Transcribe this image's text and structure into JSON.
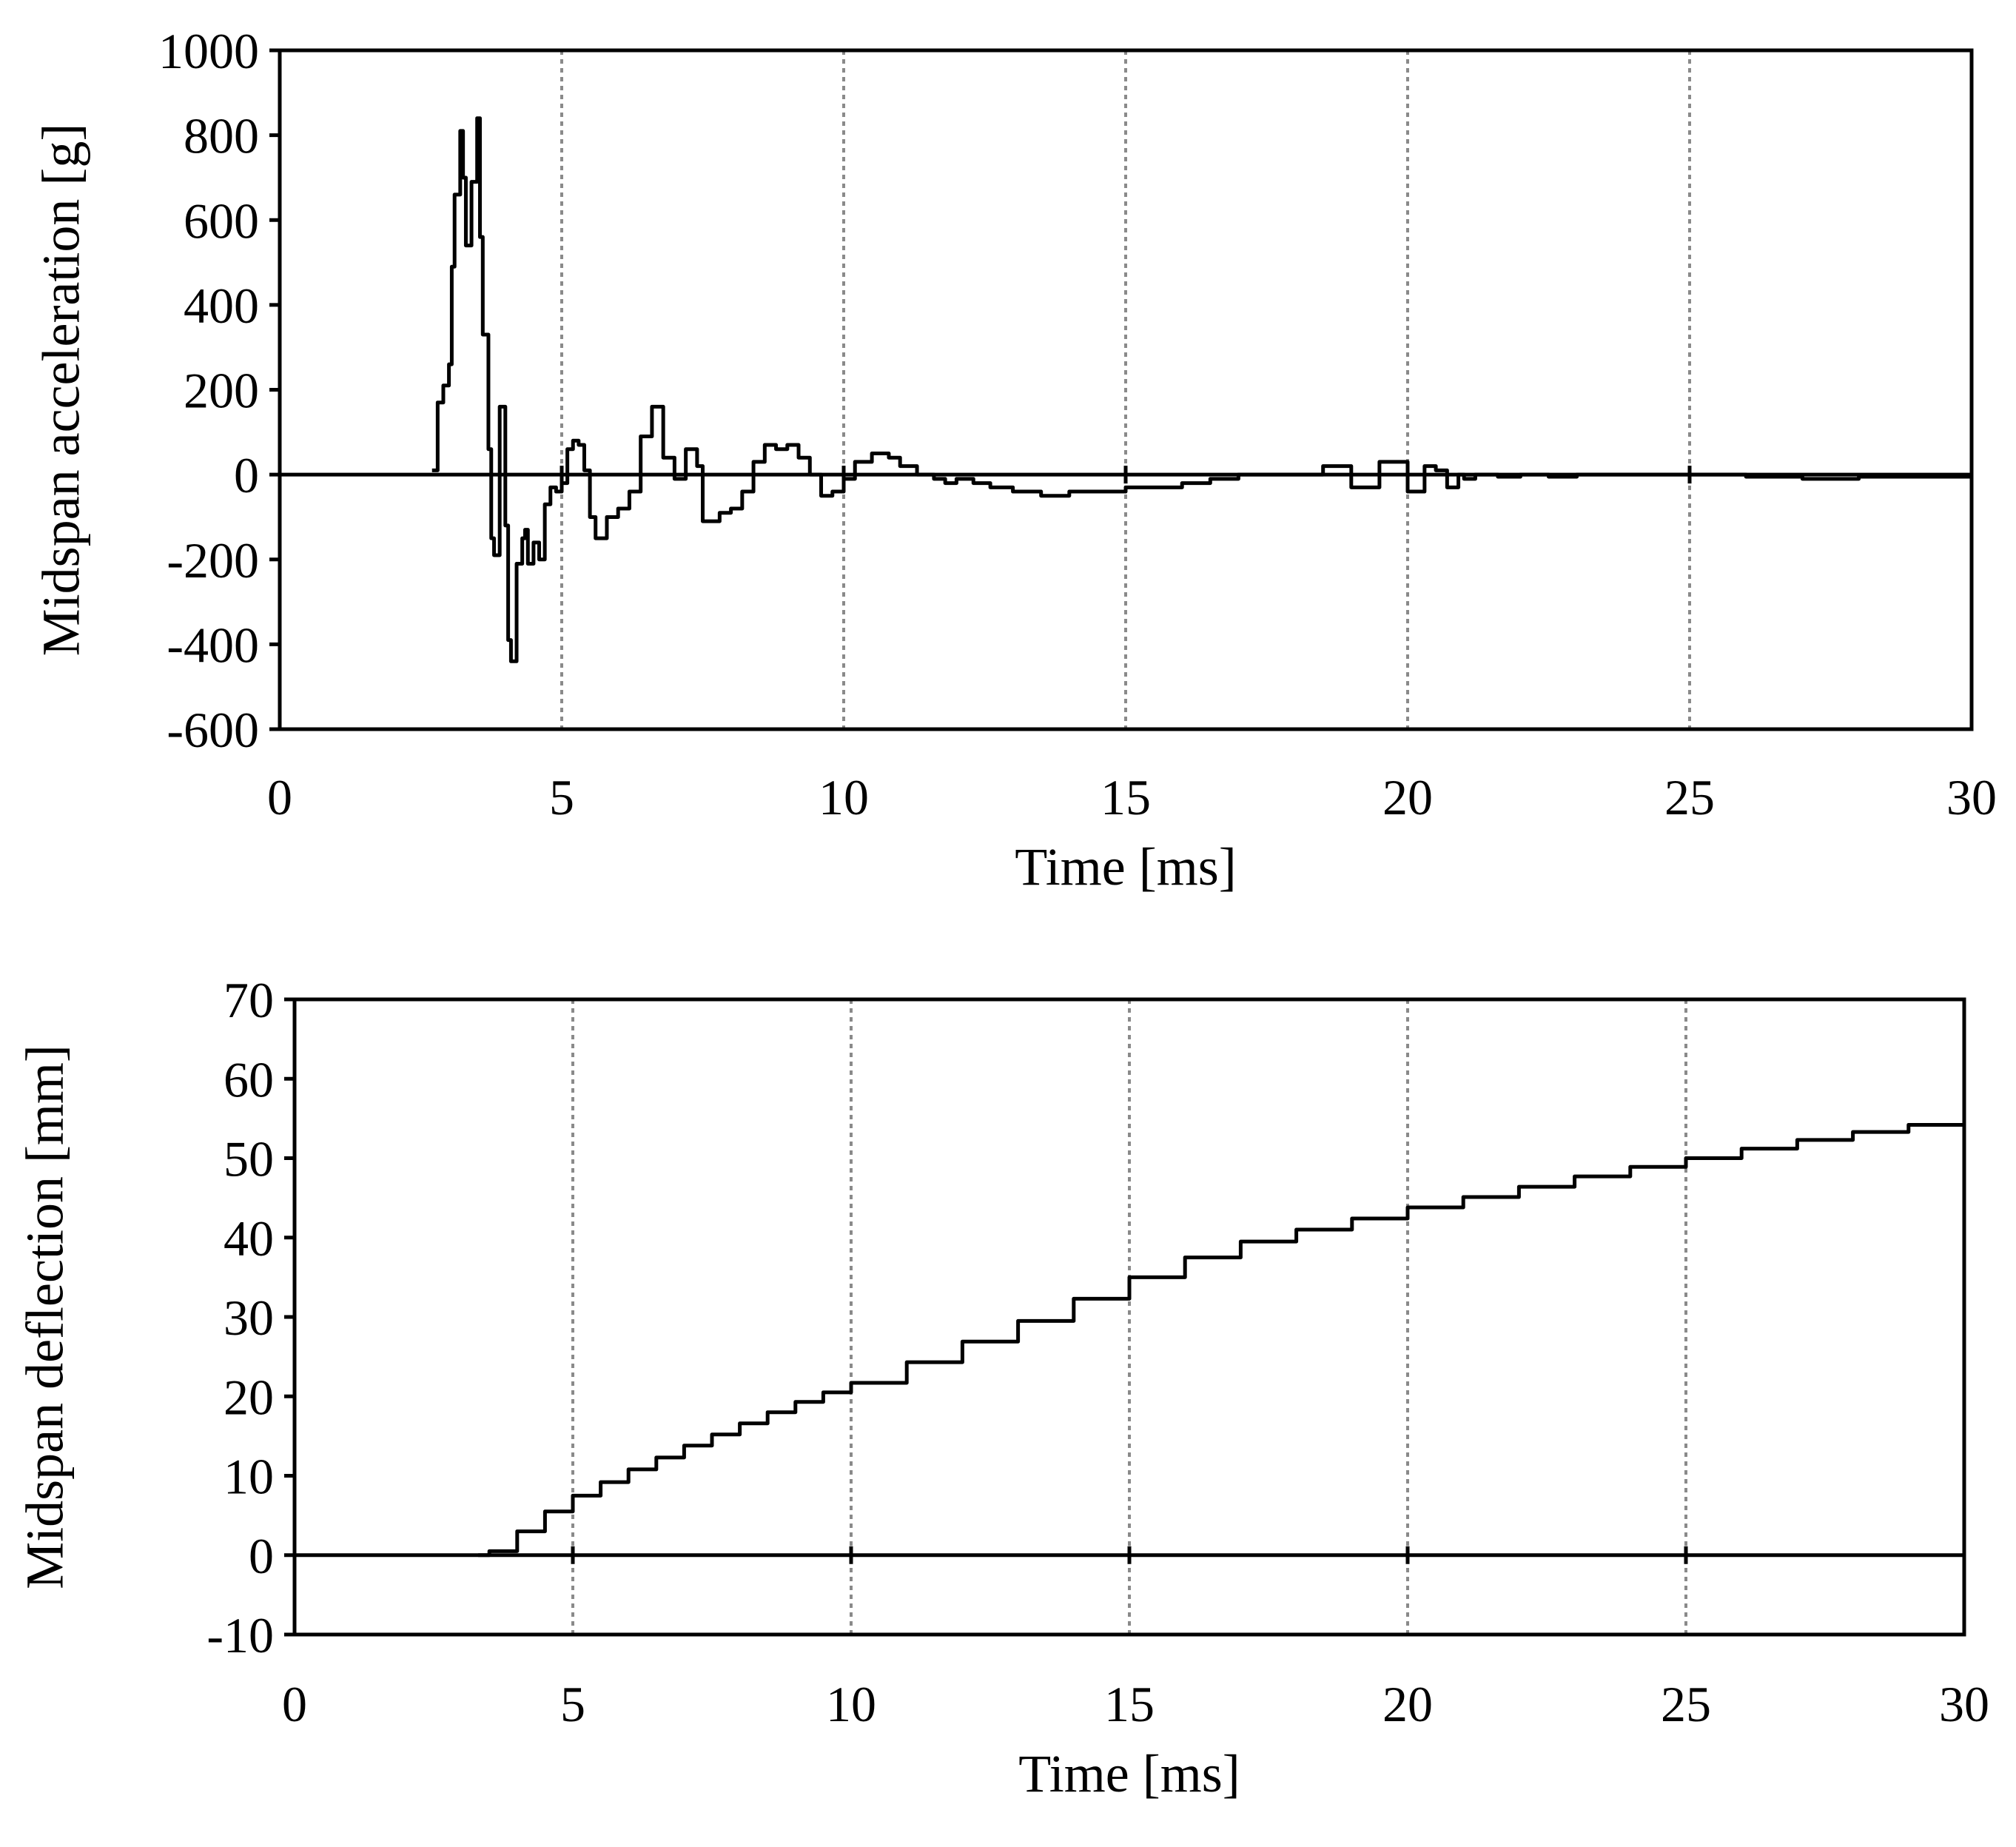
{
  "chart_data": [
    {
      "type": "line",
      "title": "",
      "xlabel": "Time [ms]",
      "ylabel": "Midspan acceleration [g]",
      "xlim": [
        0,
        30
      ],
      "ylim": [
        -600,
        1000
      ],
      "xticks": [
        0,
        5,
        10,
        15,
        20,
        25,
        30
      ],
      "yticks": [
        -600,
        -400,
        -200,
        0,
        200,
        400,
        600,
        800,
        1000
      ],
      "grid": "vertical dotted at x ticks",
      "series": [
        {
          "name": "Midspan acceleration",
          "x": [
            2.7,
            2.8,
            2.9,
            3.0,
            3.05,
            3.1,
            3.2,
            3.25,
            3.3,
            3.4,
            3.5,
            3.55,
            3.6,
            3.7,
            3.75,
            3.8,
            3.9,
            4.0,
            4.05,
            4.1,
            4.2,
            4.3,
            4.35,
            4.4,
            4.5,
            4.6,
            4.7,
            4.8,
            4.9,
            5.0,
            5.1,
            5.2,
            5.3,
            5.4,
            5.5,
            5.6,
            5.8,
            6.0,
            6.2,
            6.4,
            6.6,
            6.8,
            7.0,
            7.2,
            7.4,
            7.5,
            7.6,
            7.8,
            8.0,
            8.2,
            8.4,
            8.6,
            8.8,
            9.0,
            9.2,
            9.4,
            9.6,
            9.8,
            10.0,
            10.2,
            10.5,
            10.8,
            11.0,
            11.3,
            11.6,
            11.8,
            12.0,
            12.3,
            12.6,
            13.0,
            13.5,
            14.0,
            14.5,
            15.0,
            15.5,
            16.0,
            16.5,
            17.0,
            17.5,
            18.0,
            18.5,
            19.0,
            19.5,
            20.0,
            20.3,
            20.5,
            20.7,
            20.9,
            21.0,
            21.2,
            21.4,
            21.6,
            22.0,
            22.5,
            23.0,
            23.5,
            24.0,
            25.0,
            26.0,
            27.0,
            28.0,
            29.0,
            30.0
          ],
          "values": [
            10,
            170,
            210,
            260,
            490,
            660,
            810,
            700,
            540,
            690,
            840,
            560,
            330,
            60,
            -150,
            -190,
            160,
            -120,
            -390,
            -440,
            -210,
            -150,
            -130,
            -210,
            -160,
            -200,
            -70,
            -30,
            -40,
            -20,
            60,
            80,
            70,
            10,
            -100,
            -150,
            -100,
            -80,
            -40,
            90,
            160,
            40,
            -10,
            60,
            20,
            -110,
            -110,
            -90,
            -80,
            -40,
            30,
            70,
            60,
            70,
            40,
            0,
            -50,
            -40,
            -10,
            30,
            50,
            40,
            20,
            0,
            -10,
            -20,
            -10,
            -20,
            -30,
            -40,
            -50,
            -40,
            -40,
            -30,
            -30,
            -20,
            -10,
            0,
            0,
            0,
            20,
            -30,
            30,
            -40,
            20,
            10,
            -30,
            0,
            -10,
            0,
            0,
            -5,
            0,
            -5,
            0,
            0,
            0,
            0,
            -5,
            -10,
            -5,
            -5,
            -5
          ]
        }
      ]
    },
    {
      "type": "line",
      "title": "",
      "xlabel": "Time [ms]",
      "ylabel": "Midspan deflection [mm]",
      "xlim": [
        0,
        30
      ],
      "ylim": [
        -10,
        70
      ],
      "xticks": [
        0,
        5,
        10,
        15,
        20,
        25,
        30
      ],
      "yticks": [
        -10,
        0,
        10,
        20,
        30,
        40,
        50,
        60,
        70
      ],
      "grid": "vertical dotted at x ticks",
      "series": [
        {
          "name": "Midspan deflection",
          "x": [
            3.3,
            3.5,
            4.0,
            4.5,
            5.0,
            5.5,
            6.0,
            6.5,
            7.0,
            7.5,
            8.0,
            8.5,
            9.0,
            9.5,
            10.0,
            11.0,
            12.0,
            13.0,
            14.0,
            15.0,
            16.0,
            17.0,
            18.0,
            19.0,
            20.0,
            21.0,
            22.0,
            23.0,
            24.0,
            25.0,
            26.0,
            27.0,
            28.0,
            29.0,
            30.0
          ],
          "values": [
            0,
            0.5,
            3,
            5.5,
            7.5,
            9.2,
            10.8,
            12.3,
            13.8,
            15.2,
            16.6,
            18,
            19.3,
            20.5,
            21.7,
            24.3,
            26.9,
            29.5,
            32.3,
            35,
            37.5,
            39.5,
            41,
            42.4,
            43.8,
            45.1,
            46.4,
            47.7,
            48.9,
            50,
            51.2,
            52.3,
            53.3,
            54.2,
            55
          ]
        }
      ]
    }
  ]
}
